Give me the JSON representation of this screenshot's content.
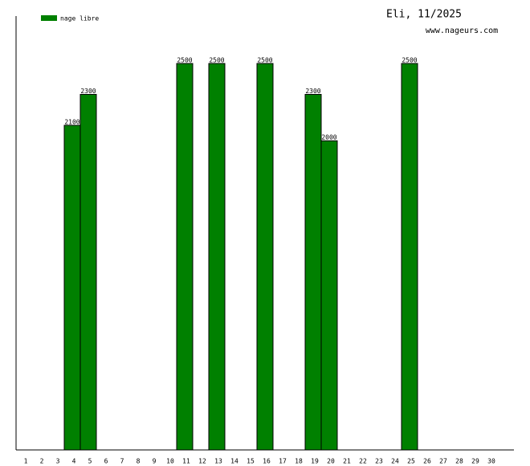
{
  "chart_data": {
    "type": "bar",
    "title": "Eli, 11/2025",
    "subtitle": "www.nageurs.com",
    "categories": [
      "1",
      "2",
      "3",
      "4",
      "5",
      "6",
      "7",
      "8",
      "9",
      "10",
      "11",
      "12",
      "13",
      "14",
      "15",
      "16",
      "17",
      "18",
      "19",
      "20",
      "21",
      "22",
      "23",
      "24",
      "25",
      "26",
      "27",
      "28",
      "29",
      "30"
    ],
    "series": [
      {
        "name": "nage libre",
        "color": "#008000",
        "values": [
          null,
          null,
          null,
          2100,
          2300,
          null,
          null,
          null,
          null,
          null,
          2500,
          null,
          2500,
          null,
          null,
          2500,
          null,
          null,
          2300,
          2000,
          null,
          null,
          null,
          null,
          2500,
          null,
          null,
          null,
          null,
          null
        ]
      }
    ]
  }
}
